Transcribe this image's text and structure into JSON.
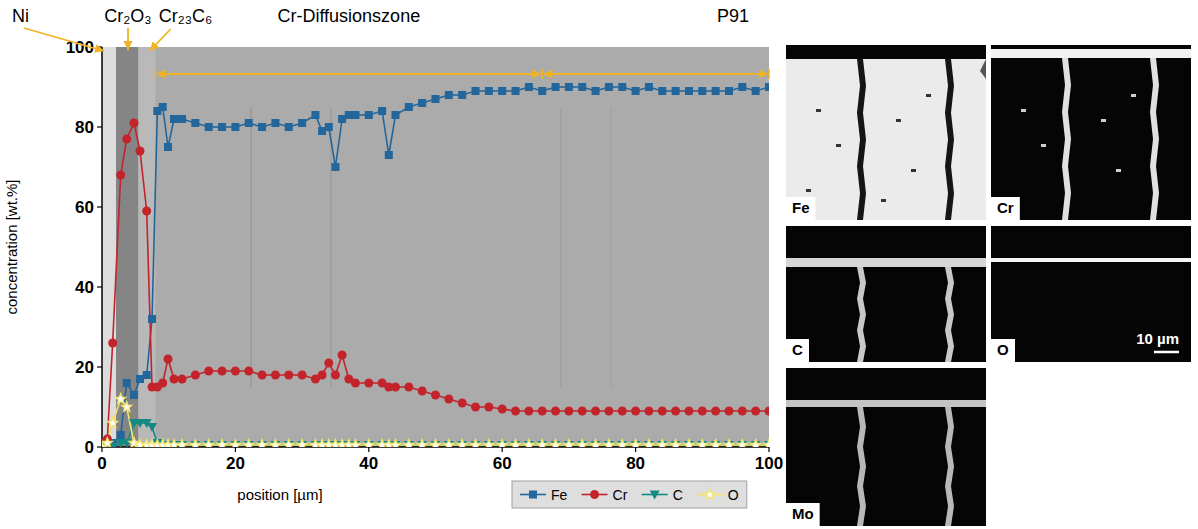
{
  "chart_data": {
    "type": "line",
    "x_label": "position [µm]",
    "y_label": "concentration [wt.%]",
    "xlim": [
      0,
      100
    ],
    "xticks": [
      0,
      20,
      40,
      60,
      80,
      100
    ],
    "ylim": [
      0,
      100
    ],
    "yticks": [
      0,
      20,
      40,
      60,
      80,
      100
    ],
    "grid": false,
    "legend": "bottom right",
    "x": [
      0,
      0.8,
      1.6,
      2.8,
      3.7,
      4.8,
      5.7,
      6.7,
      7.5,
      8.3,
      9.1,
      9.9,
      10.8,
      12,
      14,
      16,
      18,
      20,
      22,
      24,
      26,
      28,
      30,
      32,
      33,
      34,
      35,
      36,
      37,
      38,
      40,
      42,
      43,
      44,
      46,
      48,
      50,
      52,
      54,
      56,
      58,
      60,
      62,
      64,
      66,
      68,
      70,
      72,
      74,
      76,
      78,
      80,
      82,
      84,
      86,
      88,
      90,
      92,
      94,
      96,
      98,
      100
    ],
    "series": [
      {
        "name": "Fe",
        "color": "#22669b",
        "marker": "square",
        "line_style": "solid",
        "values": [
          0,
          1,
          1,
          3,
          16,
          13,
          17,
          18,
          32,
          84,
          85,
          75,
          82,
          82,
          81,
          80,
          80,
          80,
          81,
          80,
          81,
          80,
          81,
          83,
          79,
          80,
          70,
          82,
          83,
          83,
          83,
          84,
          73,
          83,
          85,
          86,
          87,
          88,
          88,
          89,
          89,
          89,
          89,
          90,
          89,
          90,
          90,
          90,
          89,
          90,
          90,
          89,
          90,
          89,
          89,
          89,
          89,
          89,
          89,
          90,
          89,
          90
        ]
      },
      {
        "name": "Cr",
        "color": "#c3242b",
        "marker": "circle",
        "line_style": "solid",
        "values": [
          1,
          2,
          26,
          68,
          77,
          81,
          74,
          59,
          15,
          15,
          16,
          22,
          17,
          17,
          18,
          19,
          19,
          19,
          19,
          18,
          18,
          18,
          18,
          17,
          18,
          21,
          18,
          23,
          17,
          16,
          16,
          16,
          15,
          15,
          15,
          14,
          13,
          12,
          11,
          10,
          10,
          9.5,
          9,
          9,
          9,
          9,
          9,
          9,
          9,
          9,
          9,
          9,
          9,
          9,
          9,
          9,
          9,
          9,
          9,
          9,
          9,
          9
        ]
      },
      {
        "name": "C",
        "color": "#138a82",
        "marker": "triangle-down",
        "line_style": "solid",
        "values": [
          0,
          0,
          0,
          1,
          1,
          6,
          6,
          6,
          5,
          1,
          0.5,
          0.5,
          0.5,
          0.5,
          0.5,
          0.5,
          0.5,
          0.5,
          0.5,
          0.5,
          0.5,
          0.5,
          0.5,
          0.5,
          0.5,
          0.5,
          0.5,
          0.5,
          0.5,
          0.5,
          0.5,
          0.5,
          0.5,
          0.5,
          0.5,
          0.5,
          0.5,
          0.5,
          0.5,
          0.5,
          0.5,
          0.5,
          0.5,
          0.5,
          0.5,
          0.5,
          0.5,
          0.5,
          0.5,
          0.5,
          0.5,
          0.5,
          0.5,
          0.5,
          0.5,
          0.5,
          0.5,
          0.5,
          0.5,
          0.5,
          0.5,
          0.5
        ]
      },
      {
        "name": "O",
        "color": "#f2e46b",
        "marker": "star",
        "line_style": "solid",
        "values": [
          0,
          1,
          6,
          12,
          10,
          1,
          0.5,
          0.5,
          0.5,
          0.5,
          0.5,
          0.5,
          0.5,
          0.5,
          0.5,
          0.5,
          0.5,
          0.5,
          0.5,
          0.5,
          0.5,
          0.5,
          0.5,
          0.5,
          0.5,
          0.5,
          0.5,
          0.5,
          0.5,
          0.5,
          0.5,
          0.5,
          0.5,
          0.5,
          0.5,
          0.5,
          0.5,
          0.5,
          0.5,
          0.5,
          0.5,
          0.5,
          0.5,
          0.5,
          0.5,
          0.5,
          0.5,
          0.5,
          0.5,
          0.5,
          0.5,
          0.5,
          0.5,
          0.5,
          0.5,
          0.5,
          0.5,
          0.5,
          0.5,
          0.5,
          0.5,
          0.5
        ]
      }
    ],
    "annotations": [
      {
        "text": "Ni",
        "x": 0.3
      },
      {
        "text": "Cr₂O₃",
        "x": 3.9
      },
      {
        "text": "Cr₂₃C₆",
        "x": 7
      },
      {
        "text": "Cr-Diffusionszone",
        "x_range": [
          8,
          66
        ]
      },
      {
        "text": "P91",
        "x_range": [
          66,
          100
        ]
      }
    ],
    "maps": [
      {
        "label": "Fe"
      },
      {
        "label": "Cr"
      },
      {
        "label": "C"
      },
      {
        "label": "O"
      },
      {
        "label": "Mo"
      }
    ],
    "scale_bar": {
      "value": 10,
      "label": "10 µm"
    }
  }
}
